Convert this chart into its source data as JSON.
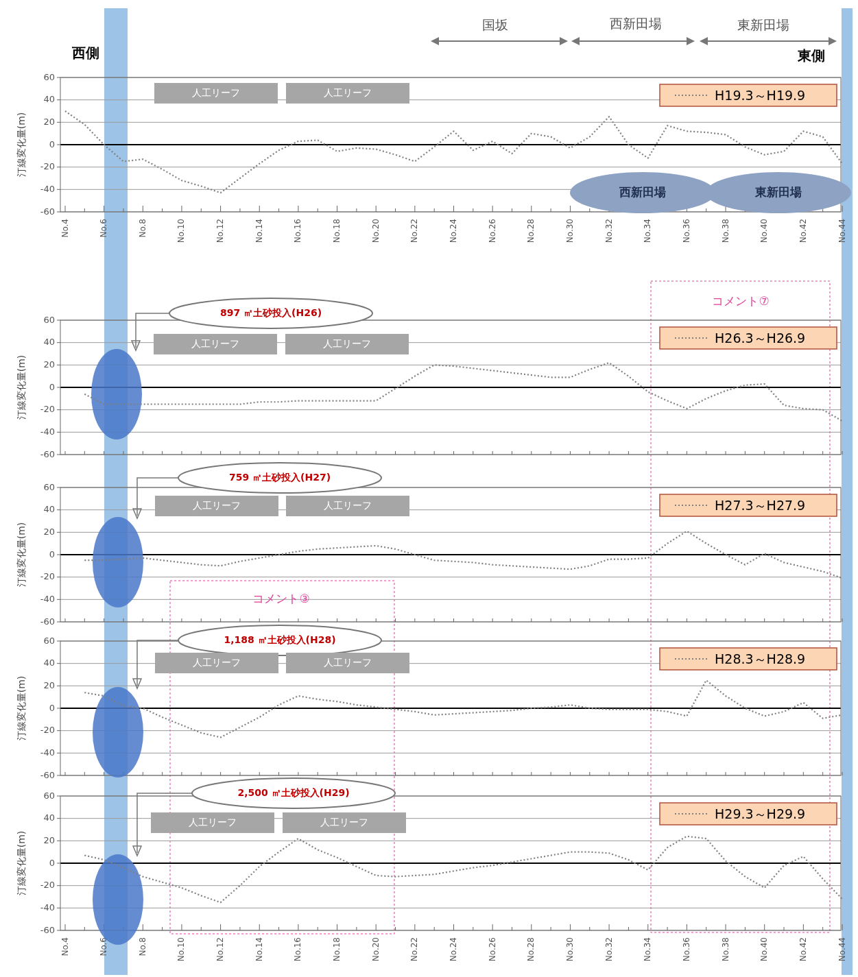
{
  "chart_data": [
    {
      "type": "line",
      "ylabel": "汀線変化量(m)",
      "categories": [
        "No.4",
        null,
        "No.6",
        null,
        "No.8",
        null,
        "No.10",
        null,
        "No.12",
        null,
        "No.14",
        null,
        "No.16",
        null,
        "No.18",
        null,
        "No.20",
        null,
        "No.22",
        null,
        "No.24",
        null,
        "No.26",
        null,
        "No.28",
        null,
        "No.30",
        null,
        "No.32",
        null,
        "No.34",
        null,
        "No.36",
        null,
        "No.38",
        null,
        "No.40",
        null,
        "No.42",
        null,
        "No.44"
      ],
      "ylim": [
        -60,
        60
      ],
      "yticks": [
        -60,
        -40,
        -20,
        0,
        20,
        40,
        60
      ],
      "grid": "y",
      "legend": "top right",
      "line_style": "dotted",
      "series": [
        {
          "name": "H19.3～H19.9",
          "color": "#808080",
          "values": [
            30,
            18,
            0,
            -15,
            -13,
            -22,
            -32,
            -37,
            -43,
            -30,
            -17,
            -5,
            3,
            4,
            -6,
            -3,
            -4,
            -9,
            -15,
            -2,
            12,
            -5,
            3,
            -8,
            10,
            7,
            -3,
            7,
            25,
            0,
            -12,
            17,
            12,
            11,
            9,
            -2,
            -9,
            -6,
            12,
            7,
            -17
          ]
        }
      ],
      "annotations": [
        "西側",
        "東側",
        "国坂",
        "西新田場",
        "東新田場",
        "人工リーフ",
        "人工リーフ",
        "西新田場",
        "東新田場"
      ]
    },
    {
      "type": "line",
      "ylabel": "汀線変化量(m)",
      "categories": [
        null,
        null,
        null,
        null,
        null,
        null,
        null,
        null,
        null,
        null,
        null,
        null,
        null,
        null,
        null,
        null,
        null,
        null,
        null,
        null,
        null,
        null,
        null,
        null,
        null,
        null,
        null,
        null,
        null,
        null,
        null,
        null,
        null,
        null,
        null,
        null,
        null,
        null,
        null,
        null,
        null
      ],
      "ylim": [
        -60,
        60
      ],
      "yticks": [
        -60,
        -40,
        -20,
        0,
        20,
        40,
        60
      ],
      "grid": "y",
      "legend": "top right",
      "line_style": "dotted",
      "series": [
        {
          "name": "H26.3～H26.9",
          "color": "#808080",
          "values": [
            null,
            -6,
            -15,
            -15,
            -15,
            -15,
            -15,
            -15,
            -15,
            -15,
            -13,
            -13,
            -12,
            -12,
            -12,
            -12,
            -12,
            -1,
            10,
            20,
            19,
            17,
            15,
            13,
            11,
            9,
            9,
            16,
            22,
            10,
            -4,
            -12,
            -19,
            -10,
            -3,
            2,
            3,
            -16,
            -19,
            -20,
            -30
          ]
        }
      ],
      "annotations": [
        "897 ㎡土砂投入(H26)",
        "人工リーフ",
        "人工リーフ",
        "コメント⑦"
      ]
    },
    {
      "type": "line",
      "ylabel": "汀線変化量(m)",
      "categories": [
        null,
        null,
        null,
        null,
        null,
        null,
        null,
        null,
        null,
        null,
        null,
        null,
        null,
        null,
        null,
        null,
        null,
        null,
        null,
        null,
        null,
        null,
        null,
        null,
        null,
        null,
        null,
        null,
        null,
        null,
        null,
        null,
        null,
        null,
        null,
        null,
        null,
        null,
        null,
        null,
        null
      ],
      "ylim": [
        -60,
        60
      ],
      "yticks": [
        -60,
        -40,
        -20,
        0,
        20,
        40,
        60
      ],
      "grid": "y",
      "legend": "top right",
      "line_style": "dotted",
      "series": [
        {
          "name": "H27.3～H27.9",
          "color": "#808080",
          "values": [
            null,
            -5,
            -5,
            -4,
            -3,
            -5,
            -7,
            -9,
            -10,
            -6,
            -3,
            0,
            3,
            5,
            6,
            7,
            8,
            5,
            0,
            -5,
            -6,
            -7,
            -9,
            -10,
            -11,
            -12,
            -13,
            -10,
            -4,
            -4,
            -3,
            10,
            21,
            10,
            0,
            -9,
            1,
            -7,
            -11,
            -15,
            -21
          ]
        }
      ],
      "annotations": [
        "759 ㎡土砂投入(H27)",
        "人工リーフ",
        "人工リーフ",
        "コメント③"
      ]
    },
    {
      "type": "line",
      "ylabel": "汀線変化量(m)",
      "categories": [
        null,
        null,
        null,
        null,
        null,
        null,
        null,
        null,
        null,
        null,
        null,
        null,
        null,
        null,
        null,
        null,
        null,
        null,
        null,
        null,
        null,
        null,
        null,
        null,
        null,
        null,
        null,
        null,
        null,
        null,
        null,
        null,
        null,
        null,
        null,
        null,
        null,
        null,
        null,
        null,
        null
      ],
      "ylim": [
        -60,
        60
      ],
      "yticks": [
        -60,
        -40,
        -20,
        0,
        20,
        40,
        60
      ],
      "grid": "y",
      "legend": "top right",
      "line_style": "dotted",
      "series": [
        {
          "name": "H28.3～H28.9",
          "color": "#808080",
          "values": [
            null,
            14,
            11,
            2,
            0,
            -8,
            -15,
            -22,
            -26,
            -17,
            -8,
            3,
            11,
            8,
            6,
            3,
            1,
            -1,
            -3,
            -6,
            -5,
            -4,
            -3,
            -2,
            0,
            1,
            3,
            0,
            -1,
            -1,
            -1,
            -3,
            -7,
            25,
            11,
            0,
            -7,
            -3,
            5,
            -9,
            -6
          ]
        }
      ],
      "annotations": [
        "1,188 ㎡土砂投入(H28)",
        "人工リーフ",
        "人工リーフ"
      ]
    },
    {
      "type": "line",
      "ylabel": "汀線変化量(m)",
      "categories": [
        "No.4",
        null,
        "No.6",
        null,
        "No.8",
        null,
        "No.10",
        null,
        "No.12",
        null,
        "No.14",
        null,
        "No.16",
        null,
        "No.18",
        null,
        "No.20",
        null,
        "No.22",
        null,
        "No.24",
        null,
        "No.26",
        null,
        "No.28",
        null,
        "No.30",
        null,
        "No.32",
        null,
        "No.34",
        null,
        "No.36",
        null,
        "No.38",
        null,
        "No.40",
        null,
        "No.42",
        null,
        "No.44"
      ],
      "ylim": [
        -60,
        60
      ],
      "yticks": [
        -60,
        -40,
        -20,
        0,
        20,
        40,
        60
      ],
      "grid": "y",
      "legend": "top right",
      "line_style": "dotted",
      "series": [
        {
          "name": "H29.3～H29.9",
          "color": "#808080",
          "values": [
            null,
            7,
            3,
            -4,
            -12,
            -17,
            -22,
            -29,
            -35,
            -20,
            -3,
            10,
            22,
            12,
            5,
            -3,
            -11,
            -12,
            -11,
            -10,
            -7,
            -4,
            -2,
            1,
            4,
            7,
            10,
            10,
            9,
            3,
            -6,
            14,
            24,
            22,
            2,
            -12,
            -22,
            -2,
            6,
            -14,
            -32
          ]
        }
      ],
      "annotations": [
        "2,500 ㎡土砂投入(H29)",
        "人工リーフ",
        "人工リーフ"
      ]
    }
  ]
}
